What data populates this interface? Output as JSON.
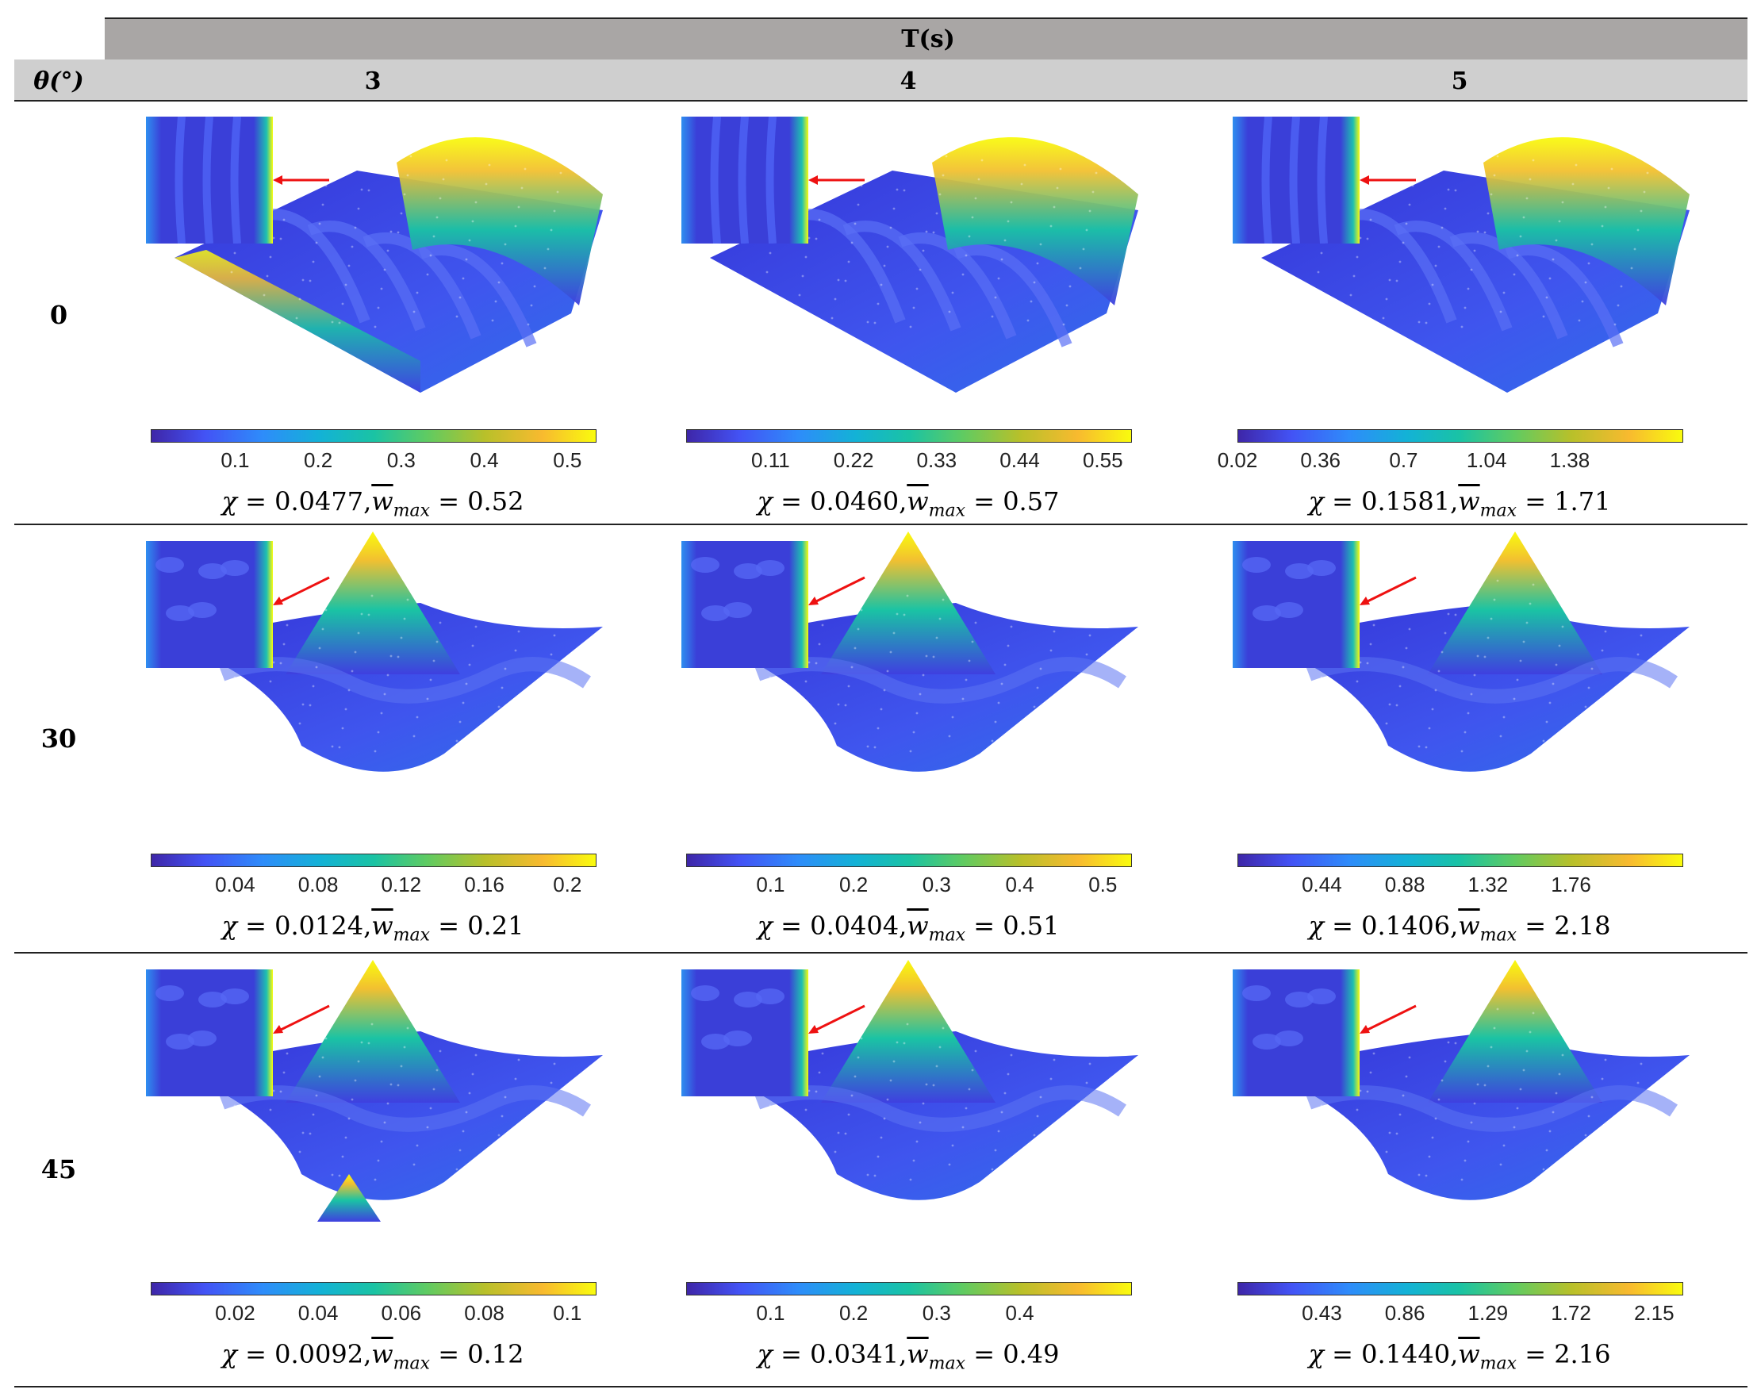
{
  "header": {
    "t_label": "T(s)",
    "theta_label": "θ(°)",
    "columns": [
      "3",
      "4",
      "5"
    ]
  },
  "rows": [
    {
      "theta": "0",
      "cells": [
        {
          "ticks": [
            "0.1",
            "0.2",
            "0.3",
            "0.4",
            "0.5"
          ],
          "chi": "0.0477",
          "wmax": "0.52"
        },
        {
          "ticks": [
            "0.11",
            "0.22",
            "0.33",
            "0.44",
            "0.55"
          ],
          "chi": "0.0460",
          "wmax": "0.57"
        },
        {
          "ticks": [
            "0.02",
            "0.36",
            "0.7",
            "1.04",
            "1.38"
          ],
          "chi": "0.1581",
          "wmax": "1.71"
        }
      ]
    },
    {
      "theta": "30",
      "cells": [
        {
          "ticks": [
            "0.04",
            "0.08",
            "0.12",
            "0.16",
            "0.2"
          ],
          "chi": "0.0124",
          "wmax": "0.21"
        },
        {
          "ticks": [
            "0.1",
            "0.2",
            "0.3",
            "0.4",
            "0.5"
          ],
          "chi": "0.0404",
          "wmax": "0.51"
        },
        {
          "ticks": [
            "0.44",
            "0.88",
            "1.32",
            "1.76"
          ],
          "chi": "0.1406",
          "wmax": "2.18"
        }
      ]
    },
    {
      "theta": "45",
      "cells": [
        {
          "ticks": [
            "0.02",
            "0.04",
            "0.06",
            "0.08",
            "0.1"
          ],
          "chi": "0.0092",
          "wmax": "0.12"
        },
        {
          "ticks": [
            "0.1",
            "0.2",
            "0.3",
            "0.4"
          ],
          "chi": "0.0341",
          "wmax": "0.49"
        },
        {
          "ticks": [
            "0.43",
            "0.86",
            "1.29",
            "1.72",
            "2.15"
          ],
          "chi": "0.1440",
          "wmax": "2.16"
        }
      ]
    }
  ],
  "symbols": {
    "chi": "χ",
    "equals": " = ",
    "w": "w",
    "max": "max",
    "sep": ","
  },
  "colors": {
    "colormap_low": "#3e26a8",
    "colormap_mid": "#1ac3a4",
    "colormap_high": "#f9fb0e",
    "arrow": "#ee1111"
  }
}
